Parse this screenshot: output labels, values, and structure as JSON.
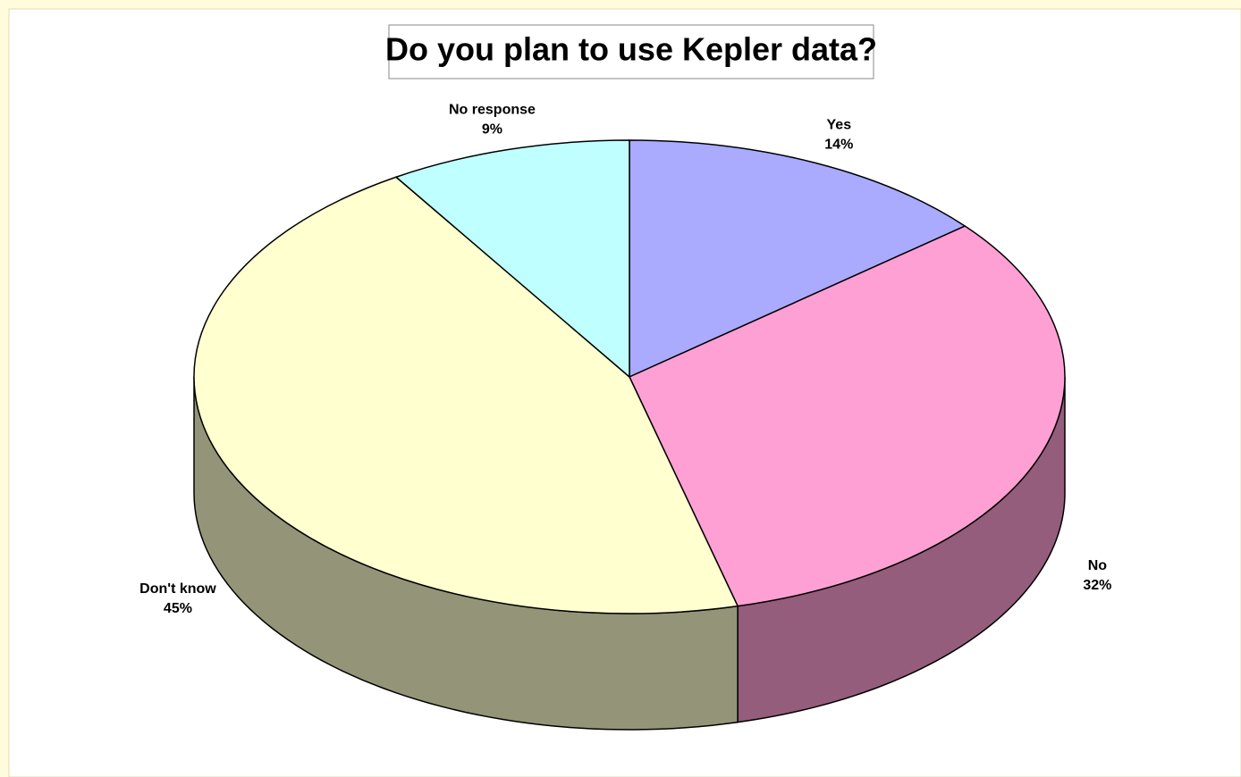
{
  "chart_data": {
    "type": "pie3d",
    "title": "Do you plan to use Kepler data?",
    "categories": [
      "Yes",
      "No",
      "Don't know",
      "No response"
    ],
    "values": [
      14,
      32,
      45,
      9
    ],
    "value_labels": [
      "14%",
      "32%",
      "45%",
      "9%"
    ],
    "colors": [
      "#aaaaff",
      "#ffa0d4",
      "#ffffd0",
      "#c0ffff"
    ]
  }
}
